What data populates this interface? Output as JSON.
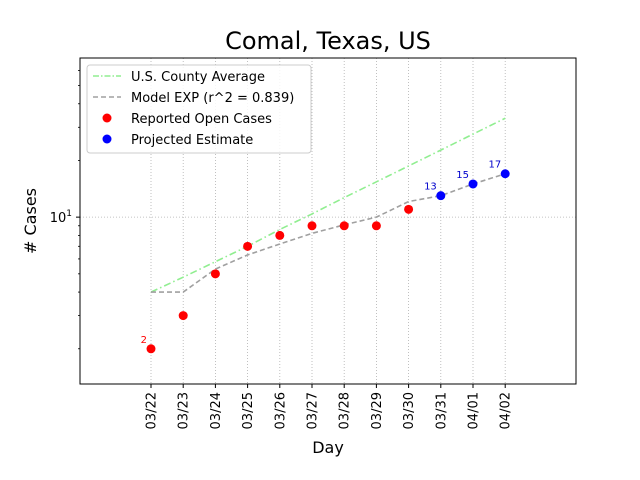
{
  "chart_data": {
    "type": "line",
    "title": "Comal, Texas, US",
    "xlabel": "Day",
    "ylabel": "# Cases",
    "yscale": "log",
    "ylim": [
      1.3,
      70
    ],
    "yticks": [
      10
    ],
    "ytick_labels": [
      "10^1"
    ],
    "grid": "dotted",
    "legend_position": "top-left",
    "categories": [
      "03/22",
      "03/23",
      "03/24",
      "03/25",
      "03/26",
      "03/27",
      "03/28",
      "03/29",
      "03/30",
      "03/31",
      "04/01",
      "04/02"
    ],
    "series": [
      {
        "name": "U.S. County Average",
        "style": "dash-dot",
        "color": "#90ee90",
        "values": [
          4,
          4.8,
          5.8,
          7.0,
          8.6,
          10.4,
          12.7,
          15.4,
          18.7,
          22.7,
          27.6,
          33.5
        ]
      },
      {
        "name": "Model EXP (r^2 = 0.839)",
        "style": "dashed",
        "color": "#a0a0a0",
        "values": [
          4,
          4,
          5.3,
          6.3,
          7.2,
          8.2,
          9.1,
          10.0,
          12.1,
          13.0,
          15.0,
          17.0
        ]
      },
      {
        "name": "Reported Open Cases",
        "style": "marker",
        "color": "#ff0000",
        "values": [
          2,
          3,
          5,
          7,
          8,
          9,
          9,
          9,
          11,
          null,
          null,
          null
        ]
      },
      {
        "name": "Projected Estimate",
        "style": "marker",
        "color": "#0000ff",
        "values": [
          null,
          null,
          null,
          null,
          null,
          null,
          null,
          null,
          null,
          13,
          15,
          17
        ]
      }
    ],
    "annotations": [
      {
        "x": "03/22",
        "y": 2,
        "text": "2",
        "color": "#ff0000"
      },
      {
        "x": "03/31",
        "y": 13,
        "text": "13",
        "color": "#0000cc"
      },
      {
        "x": "04/01",
        "y": 15,
        "text": "15",
        "color": "#0000cc"
      },
      {
        "x": "04/02",
        "y": 17,
        "text": "17",
        "color": "#0000cc"
      }
    ]
  }
}
